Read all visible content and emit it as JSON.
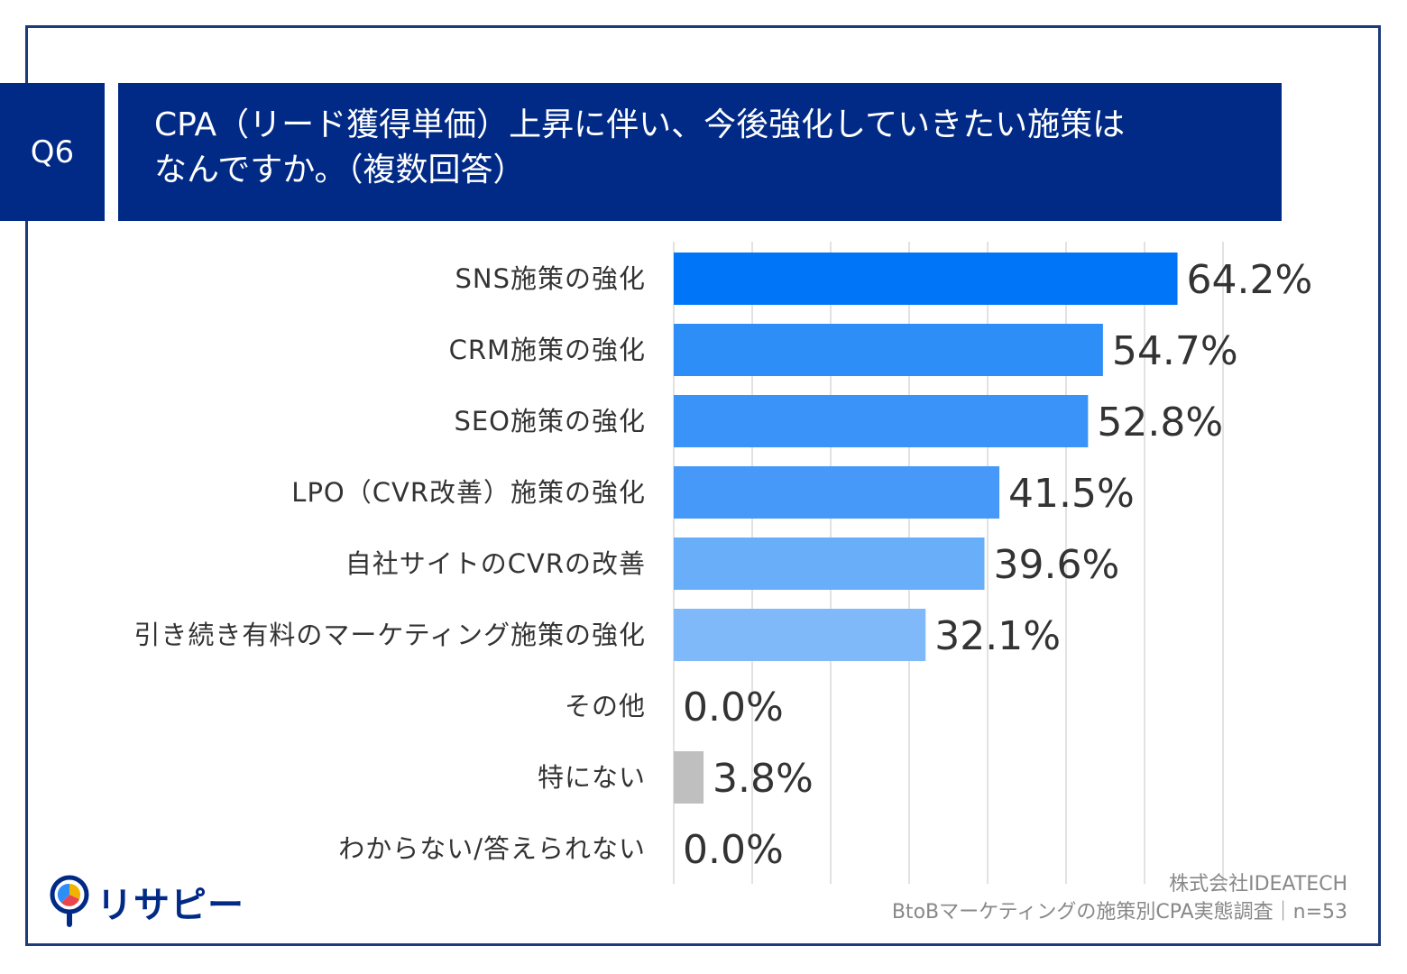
{
  "header": {
    "question_badge": "Q6",
    "title_line1": "CPA（リード獲得単価）上昇に伴い、今後強化していきたい施策は",
    "title_line2": "なんですか。（複数回答）"
  },
  "source": {
    "line1": "株式会社IDEATECH",
    "line2": "BtoBマーケティングの施策別CPA実態調査｜n=53"
  },
  "logo": {
    "text": "リサピー",
    "icon": "pin-pie-icon"
  },
  "chart_data": {
    "type": "bar",
    "orientation": "horizontal",
    "categories": [
      "SNS施策の強化",
      "CRM施策の強化",
      "SEO施策の強化",
      "LPO（CVR改善）施策の強化",
      "自社サイトのCVRの改善",
      "引き続き有料のマーケティング施策の強化",
      "その他",
      "特にない",
      "わからない/答えられない"
    ],
    "values": [
      64.2,
      54.7,
      52.8,
      41.5,
      39.6,
      32.1,
      0.0,
      3.8,
      0.0
    ],
    "value_labels": [
      "64.2%",
      "54.7%",
      "52.8%",
      "41.5%",
      "39.6%",
      "32.1%",
      "0.0%",
      "3.8%",
      "0.0%"
    ],
    "colors": [
      "#0075f8",
      "#2e8ef8",
      "#3993f8",
      "#4699f9",
      "#69aef9",
      "#7fb9fa",
      "#bfbfbf",
      "#bfbfbf",
      "#bfbfbf"
    ],
    "xlim": [
      0,
      70
    ],
    "grid": true,
    "legend": "none"
  }
}
